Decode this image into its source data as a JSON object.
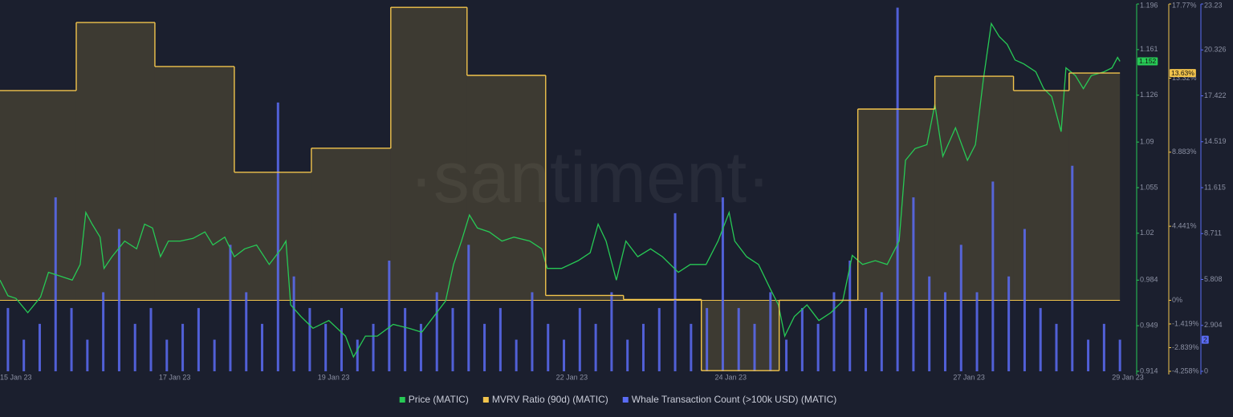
{
  "chart_data": {
    "type": "combo",
    "watermark": "·santiment·",
    "xlim": [
      14.8,
      29.05
    ],
    "xticks": [
      {
        "value": 15,
        "label": "15 Jan 23"
      },
      {
        "value": 17,
        "label": "17 Jan 23"
      },
      {
        "value": 19,
        "label": "19 Jan 23"
      },
      {
        "value": 22,
        "label": "22 Jan 23"
      },
      {
        "value": 24,
        "label": "24 Jan 23"
      },
      {
        "value": 27,
        "label": "27 Jan 23"
      },
      {
        "value": 29,
        "label": "29 Jan 23"
      }
    ],
    "ylim": [
      0.914,
      1.196
    ],
    "yticks": [
      1.196,
      1.161,
      1.126,
      1.09,
      1.055,
      1.02,
      0.984,
      0.949,
      0.914
    ],
    "y2lim": [
      -4.258,
      17.77
    ],
    "y2ticks": [
      {
        "value": 17.77,
        "label": "17.77%"
      },
      {
        "value": 13.32,
        "label": "13.32%"
      },
      {
        "value": 8.883,
        "label": "8.883%"
      },
      {
        "value": 4.441,
        "label": "4.441%"
      },
      {
        "value": 0,
        "label": "0%"
      },
      {
        "value": -1.419,
        "label": "-1.419%"
      },
      {
        "value": -2.839,
        "label": "-2.839%"
      },
      {
        "value": -4.258,
        "label": "-4.258%"
      }
    ],
    "y3lim": [
      0,
      23.23
    ],
    "y3ticks": [
      23.23,
      20.326,
      17.422,
      14.519,
      11.615,
      8.711,
      5.808,
      2.904,
      0
    ],
    "series": [
      {
        "name": "Price (MATIC)",
        "type": "line",
        "axis": "y",
        "color": "#27c955",
        "badge": "1.152",
        "x": [
          14.8,
          14.9,
          15.0,
          15.15,
          15.31,
          15.41,
          15.56,
          15.71,
          15.81,
          15.88,
          15.96,
          16.06,
          16.11,
          16.21,
          16.37,
          16.52,
          16.62,
          16.72,
          16.82,
          16.92,
          17.07,
          17.23,
          17.38,
          17.48,
          17.63,
          17.75,
          17.88,
          18.03,
          18.19,
          18.34,
          18.4,
          18.46,
          18.59,
          18.74,
          18.94,
          19.15,
          19.25,
          19.4,
          19.55,
          19.75,
          19.95,
          20.11,
          20.26,
          20.41,
          20.51,
          20.61,
          20.71,
          20.81,
          20.96,
          21.12,
          21.27,
          21.47,
          21.62,
          21.69,
          21.87,
          22.08,
          22.23,
          22.33,
          22.43,
          22.56,
          22.68,
          22.83,
          22.99,
          23.14,
          23.34,
          23.49,
          23.69,
          23.84,
          23.98,
          24.05,
          24.2,
          24.35,
          24.5,
          24.6,
          24.68,
          24.8,
          24.96,
          25.11,
          25.26,
          25.41,
          25.53,
          25.66,
          25.82,
          25.97,
          26.12,
          26.2,
          26.32,
          26.47,
          26.57,
          26.67,
          26.83,
          26.98,
          27.08,
          27.18,
          27.28,
          27.38,
          27.48,
          27.58,
          27.69,
          27.84,
          27.94,
          28.04,
          28.16,
          28.22,
          28.34,
          28.44,
          28.54,
          28.7,
          28.8,
          28.87,
          28.9
        ],
        "values": [
          0.984,
          0.972,
          0.97,
          0.959,
          0.971,
          0.99,
          0.987,
          0.984,
          0.996,
          1.036,
          1.027,
          1.017,
          0.993,
          1.002,
          1.014,
          1.008,
          1.027,
          1.024,
          1.002,
          1.014,
          1.014,
          1.016,
          1.021,
          1.011,
          1.017,
          1.002,
          1.008,
          1.011,
          0.996,
          1.008,
          1.014,
          0.965,
          0.956,
          0.947,
          0.953,
          0.941,
          0.925,
          0.941,
          0.941,
          0.95,
          0.947,
          0.944,
          0.956,
          0.968,
          0.996,
          1.014,
          1.034,
          1.024,
          1.021,
          1.014,
          1.017,
          1.014,
          1.008,
          0.993,
          0.993,
          0.999,
          1.005,
          1.027,
          1.014,
          0.984,
          1.014,
          1.002,
          1.008,
          1.002,
          0.99,
          0.996,
          0.996,
          1.014,
          1.036,
          1.014,
          1.002,
          0.996,
          0.977,
          0.965,
          0.941,
          0.956,
          0.965,
          0.953,
          0.959,
          0.968,
          1.003,
          0.996,
          0.999,
          0.996,
          1.014,
          1.076,
          1.085,
          1.088,
          1.119,
          1.079,
          1.101,
          1.076,
          1.088,
          1.138,
          1.181,
          1.171,
          1.165,
          1.153,
          1.15,
          1.144,
          1.131,
          1.125,
          1.098,
          1.147,
          1.141,
          1.131,
          1.141,
          1.144,
          1.147,
          1.155,
          1.152
        ]
      },
      {
        "name": "MVRV Ratio (90d) (MATIC)",
        "type": "step",
        "axis": "y2",
        "color": "#f2c44c",
        "badge": "13.63%",
        "x": [
          14.8,
          15.76,
          16.75,
          17.75,
          18.72,
          19.72,
          20.68,
          21.67,
          22.65,
          23.63,
          24.61,
          25.6,
          26.57,
          27.56,
          28.26,
          28.9
        ],
        "values": [
          12.58,
          16.66,
          14.02,
          7.68,
          9.12,
          17.57,
          13.49,
          0.29,
          0.05,
          -4.22,
          0,
          11.47,
          13.44,
          12.58,
          13.63,
          13.63
        ]
      },
      {
        "name": "Whale Transaction Count (>100k USD) (MATIC)",
        "type": "bar",
        "axis": "y3",
        "color": "#5a6cf5",
        "badge": "2",
        "x": [
          14.9,
          15.1,
          15.3,
          15.5,
          15.7,
          15.9,
          16.1,
          16.3,
          16.5,
          16.7,
          16.9,
          17.1,
          17.3,
          17.5,
          17.7,
          17.9,
          18.1,
          18.3,
          18.5,
          18.7,
          18.9,
          19.1,
          19.3,
          19.5,
          19.7,
          19.9,
          20.1,
          20.3,
          20.5,
          20.7,
          20.9,
          21.1,
          21.3,
          21.5,
          21.7,
          21.9,
          22.1,
          22.3,
          22.5,
          22.7,
          22.9,
          23.1,
          23.3,
          23.5,
          23.7,
          23.9,
          24.1,
          24.3,
          24.5,
          24.7,
          24.9,
          25.1,
          25.3,
          25.5,
          25.7,
          25.9,
          26.1,
          26.3,
          26.5,
          26.7,
          26.9,
          27.1,
          27.3,
          27.5,
          27.7,
          27.9,
          28.1,
          28.3,
          28.5,
          28.7,
          28.9
        ],
        "values": [
          4,
          2,
          3,
          11,
          4,
          2,
          5,
          9,
          3,
          4,
          2,
          3,
          4,
          2,
          8,
          5,
          3,
          17,
          6,
          4,
          3,
          4,
          2,
          3,
          7,
          4,
          3,
          5,
          4,
          8,
          3,
          4,
          2,
          5,
          3,
          2,
          4,
          3,
          5,
          2,
          3,
          4,
          10,
          3,
          4,
          11,
          4,
          3,
          5,
          2,
          4,
          3,
          5,
          7,
          4,
          5,
          23,
          11,
          6,
          5,
          8,
          5,
          12,
          6,
          9,
          4,
          3,
          13,
          2,
          3,
          2
        ]
      }
    ]
  }
}
